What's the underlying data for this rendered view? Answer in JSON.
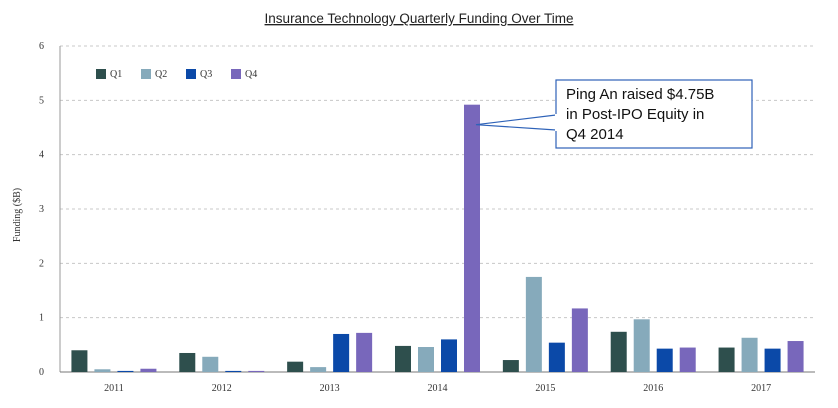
{
  "chart_data": {
    "type": "bar",
    "title": "Insurance Technology Quarterly Funding Over Time",
    "xlabel": "",
    "ylabel": "Funding ($B)",
    "ylim": [
      0,
      6
    ],
    "yticks": [
      0,
      1,
      2,
      3,
      4,
      5,
      6
    ],
    "grid": true,
    "legend_position": "top-left",
    "categories": [
      "2011",
      "2012",
      "2013",
      "2014",
      "2015",
      "2016",
      "2017"
    ],
    "series": [
      {
        "name": "Q1",
        "color": "#2e4f4d",
        "values": [
          0.4,
          0.35,
          0.19,
          0.48,
          0.22,
          0.74,
          0.45
        ]
      },
      {
        "name": "Q2",
        "color": "#86aabb",
        "values": [
          0.05,
          0.28,
          0.09,
          0.46,
          1.75,
          0.97,
          0.63
        ]
      },
      {
        "name": "Q3",
        "color": "#0b49a8",
        "values": [
          0.02,
          0.02,
          0.7,
          0.6,
          0.54,
          0.43,
          0.43
        ]
      },
      {
        "name": "Q4",
        "color": "#7867bb",
        "values": [
          0.06,
          0.02,
          0.72,
          4.92,
          1.17,
          0.45,
          0.57
        ]
      }
    ],
    "annotation": {
      "text_lines": [
        "Ping An raised $4.75B",
        "in Post-IPO Equity in",
        "Q4 2014"
      ],
      "category": "2014",
      "series": "Q4"
    }
  }
}
